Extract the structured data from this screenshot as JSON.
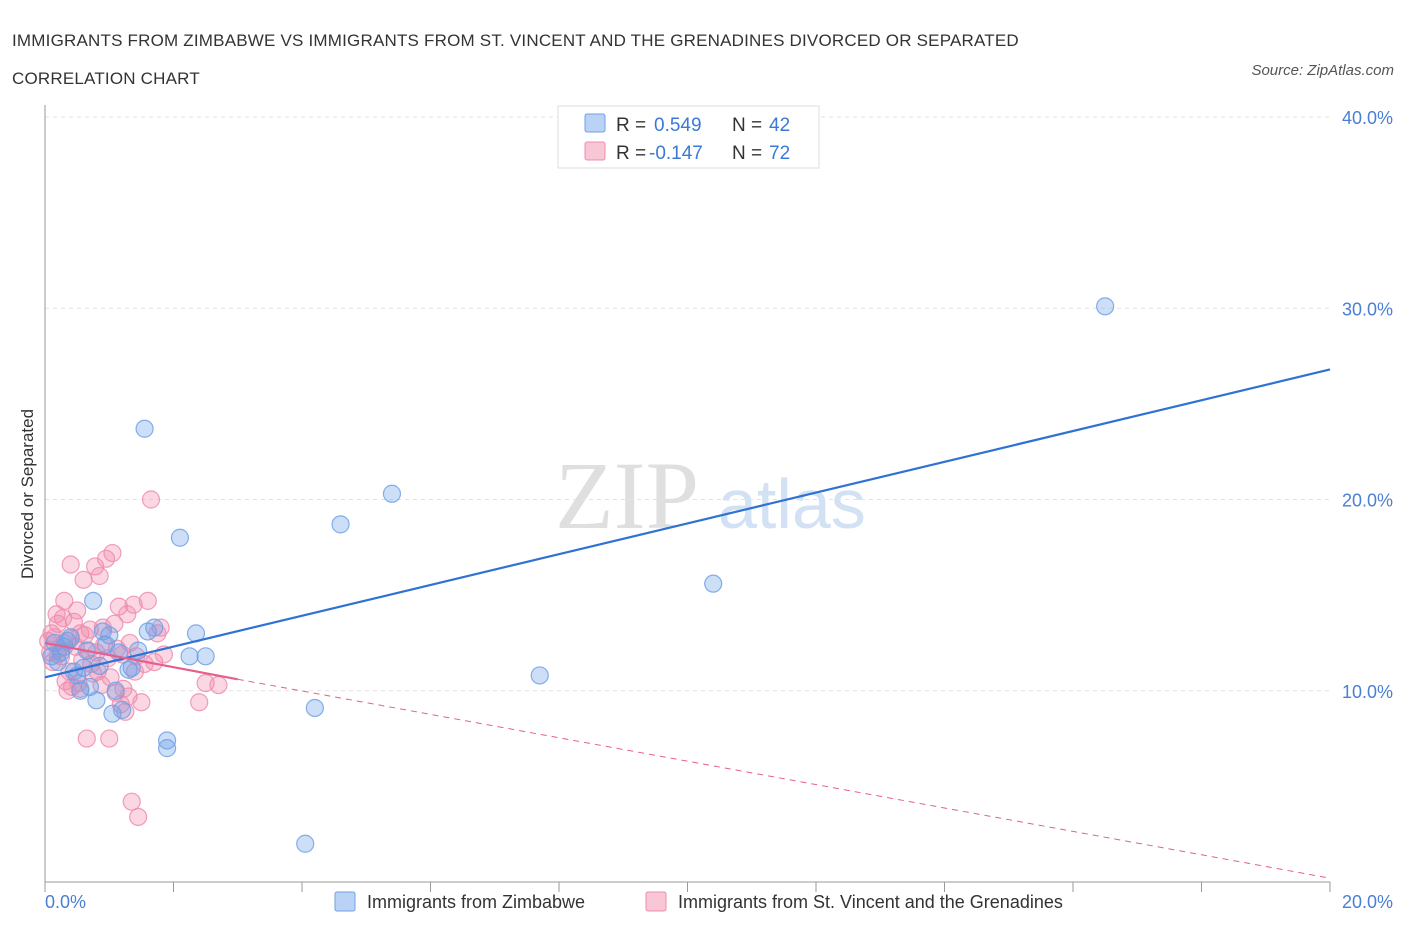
{
  "header": {
    "title": "IMMIGRANTS FROM ZIMBABWE VS IMMIGRANTS FROM ST. VINCENT AND THE GRENADINES DIVORCED OR SEPARATED CORRELATION CHART",
    "source": "Source: ZipAtlas.com"
  },
  "watermark": {
    "zip": "ZIP",
    "atlas": "atlas"
  },
  "legend": {
    "rows": [
      {
        "r_label": "R =",
        "r_value": "0.549",
        "n_label": "N =",
        "n_value": "42"
      },
      {
        "r_label": "R =",
        "r_value": "-0.147",
        "n_label": "N =",
        "n_value": "72"
      }
    ]
  },
  "chart_data": {
    "type": "scatter",
    "title": "IMMIGRANTS FROM ZIMBABWE VS IMMIGRANTS FROM ST. VINCENT AND THE GRENADINES DIVORCED OR SEPARATED CORRELATION CHART",
    "xlabel": "",
    "ylabel": "Divorced or Separated",
    "xlim": [
      0,
      20
    ],
    "ylim": [
      0,
      40
    ],
    "x_ticks": [
      "0.0%",
      "20.0%"
    ],
    "y_ticks": [
      {
        "value": 10,
        "label": "10.0%"
      },
      {
        "value": 20,
        "label": "20.0%"
      },
      {
        "value": 30,
        "label": "30.0%"
      },
      {
        "value": 40,
        "label": "40.0%"
      }
    ],
    "colors": {
      "zimbabwe": "#6fa1e8",
      "stvincent": "#f08cae",
      "zim_line": "#2f72d4",
      "svg_line": "#e4608e"
    },
    "series": [
      {
        "name": "Immigrants from Zimbabwe",
        "r": 0.549,
        "n": 42,
        "trend": {
          "x0": 0,
          "y0": 10.7,
          "x1": 20,
          "y1": 26.8
        },
        "points": [
          [
            0.1,
            11.8
          ],
          [
            0.15,
            12.5
          ],
          [
            0.2,
            11.5
          ],
          [
            0.25,
            12.0
          ],
          [
            0.3,
            12.3
          ],
          [
            0.35,
            12.6
          ],
          [
            0.4,
            12.8
          ],
          [
            0.45,
            11.0
          ],
          [
            0.5,
            10.8
          ],
          [
            0.55,
            10.0
          ],
          [
            0.6,
            11.2
          ],
          [
            0.65,
            12.1
          ],
          [
            0.7,
            10.2
          ],
          [
            0.75,
            14.7
          ],
          [
            0.8,
            9.5
          ],
          [
            0.85,
            11.3
          ],
          [
            0.9,
            13.1
          ],
          [
            0.95,
            12.4
          ],
          [
            1.0,
            12.9
          ],
          [
            1.05,
            8.8
          ],
          [
            1.1,
            10.0
          ],
          [
            1.15,
            12.0
          ],
          [
            1.2,
            9.0
          ],
          [
            1.3,
            11.1
          ],
          [
            1.35,
            11.2
          ],
          [
            1.45,
            12.1
          ],
          [
            1.55,
            23.7
          ],
          [
            1.6,
            13.1
          ],
          [
            1.7,
            13.3
          ],
          [
            1.9,
            7.4
          ],
          [
            1.9,
            7.0
          ],
          [
            2.1,
            18.0
          ],
          [
            2.25,
            11.8
          ],
          [
            2.35,
            13.0
          ],
          [
            2.5,
            11.8
          ],
          [
            4.2,
            9.1
          ],
          [
            4.05,
            2.0
          ],
          [
            4.6,
            18.7
          ],
          [
            5.4,
            20.3
          ],
          [
            7.7,
            10.8
          ],
          [
            10.4,
            15.6
          ],
          [
            16.5,
            30.1
          ]
        ]
      },
      {
        "name": "Immigrants from St. Vincent and the Grenadines",
        "r": -0.147,
        "n": 72,
        "trend": {
          "x0": 0,
          "y0": 12.5,
          "x1": 3.0,
          "y1": 10.6,
          "dash_x1": 20,
          "dash_y1": 0.2
        },
        "points": [
          [
            0.05,
            12.6
          ],
          [
            0.08,
            12.0
          ],
          [
            0.1,
            13.0
          ],
          [
            0.12,
            11.5
          ],
          [
            0.15,
            12.8
          ],
          [
            0.18,
            14.0
          ],
          [
            0.2,
            13.5
          ],
          [
            0.22,
            12.2
          ],
          [
            0.25,
            11.8
          ],
          [
            0.28,
            13.8
          ],
          [
            0.3,
            12.5
          ],
          [
            0.32,
            10.5
          ],
          [
            0.35,
            10.0
          ],
          [
            0.38,
            11.0
          ],
          [
            0.4,
            12.7
          ],
          [
            0.42,
            10.2
          ],
          [
            0.45,
            13.6
          ],
          [
            0.48,
            12.3
          ],
          [
            0.5,
            14.2
          ],
          [
            0.52,
            10.4
          ],
          [
            0.55,
            13.0
          ],
          [
            0.58,
            11.6
          ],
          [
            0.6,
            15.8
          ],
          [
            0.62,
            12.9
          ],
          [
            0.65,
            7.5
          ],
          [
            0.68,
            12.1
          ],
          [
            0.7,
            13.2
          ],
          [
            0.72,
            11.4
          ],
          [
            0.75,
            10.9
          ],
          [
            0.78,
            16.5
          ],
          [
            0.8,
            12.0
          ],
          [
            0.82,
            11.0
          ],
          [
            0.85,
            16.0
          ],
          [
            0.88,
            10.3
          ],
          [
            0.9,
            13.3
          ],
          [
            0.92,
            12.4
          ],
          [
            0.95,
            16.9
          ],
          [
            0.98,
            11.7
          ],
          [
            1.0,
            7.5
          ],
          [
            1.02,
            10.7
          ],
          [
            1.05,
            17.2
          ],
          [
            1.08,
            13.5
          ],
          [
            1.1,
            9.9
          ],
          [
            1.12,
            12.2
          ],
          [
            1.15,
            14.4
          ],
          [
            1.18,
            9.3
          ],
          [
            1.2,
            11.9
          ],
          [
            1.22,
            10.1
          ],
          [
            1.25,
            8.9
          ],
          [
            1.28,
            14.0
          ],
          [
            1.3,
            9.7
          ],
          [
            1.32,
            12.5
          ],
          [
            1.35,
            4.2
          ],
          [
            1.38,
            14.5
          ],
          [
            1.4,
            11.0
          ],
          [
            1.42,
            11.8
          ],
          [
            1.45,
            3.4
          ],
          [
            1.5,
            9.4
          ],
          [
            1.55,
            11.4
          ],
          [
            1.6,
            14.7
          ],
          [
            1.65,
            20.0
          ],
          [
            1.7,
            11.5
          ],
          [
            1.75,
            13.0
          ],
          [
            1.8,
            13.3
          ],
          [
            1.85,
            11.9
          ],
          [
            0.3,
            14.7
          ],
          [
            0.4,
            16.6
          ],
          [
            0.55,
            10.1
          ],
          [
            2.4,
            9.4
          ],
          [
            2.5,
            10.4
          ],
          [
            2.7,
            10.3
          ],
          [
            0.2,
            11.9
          ]
        ]
      }
    ]
  }
}
